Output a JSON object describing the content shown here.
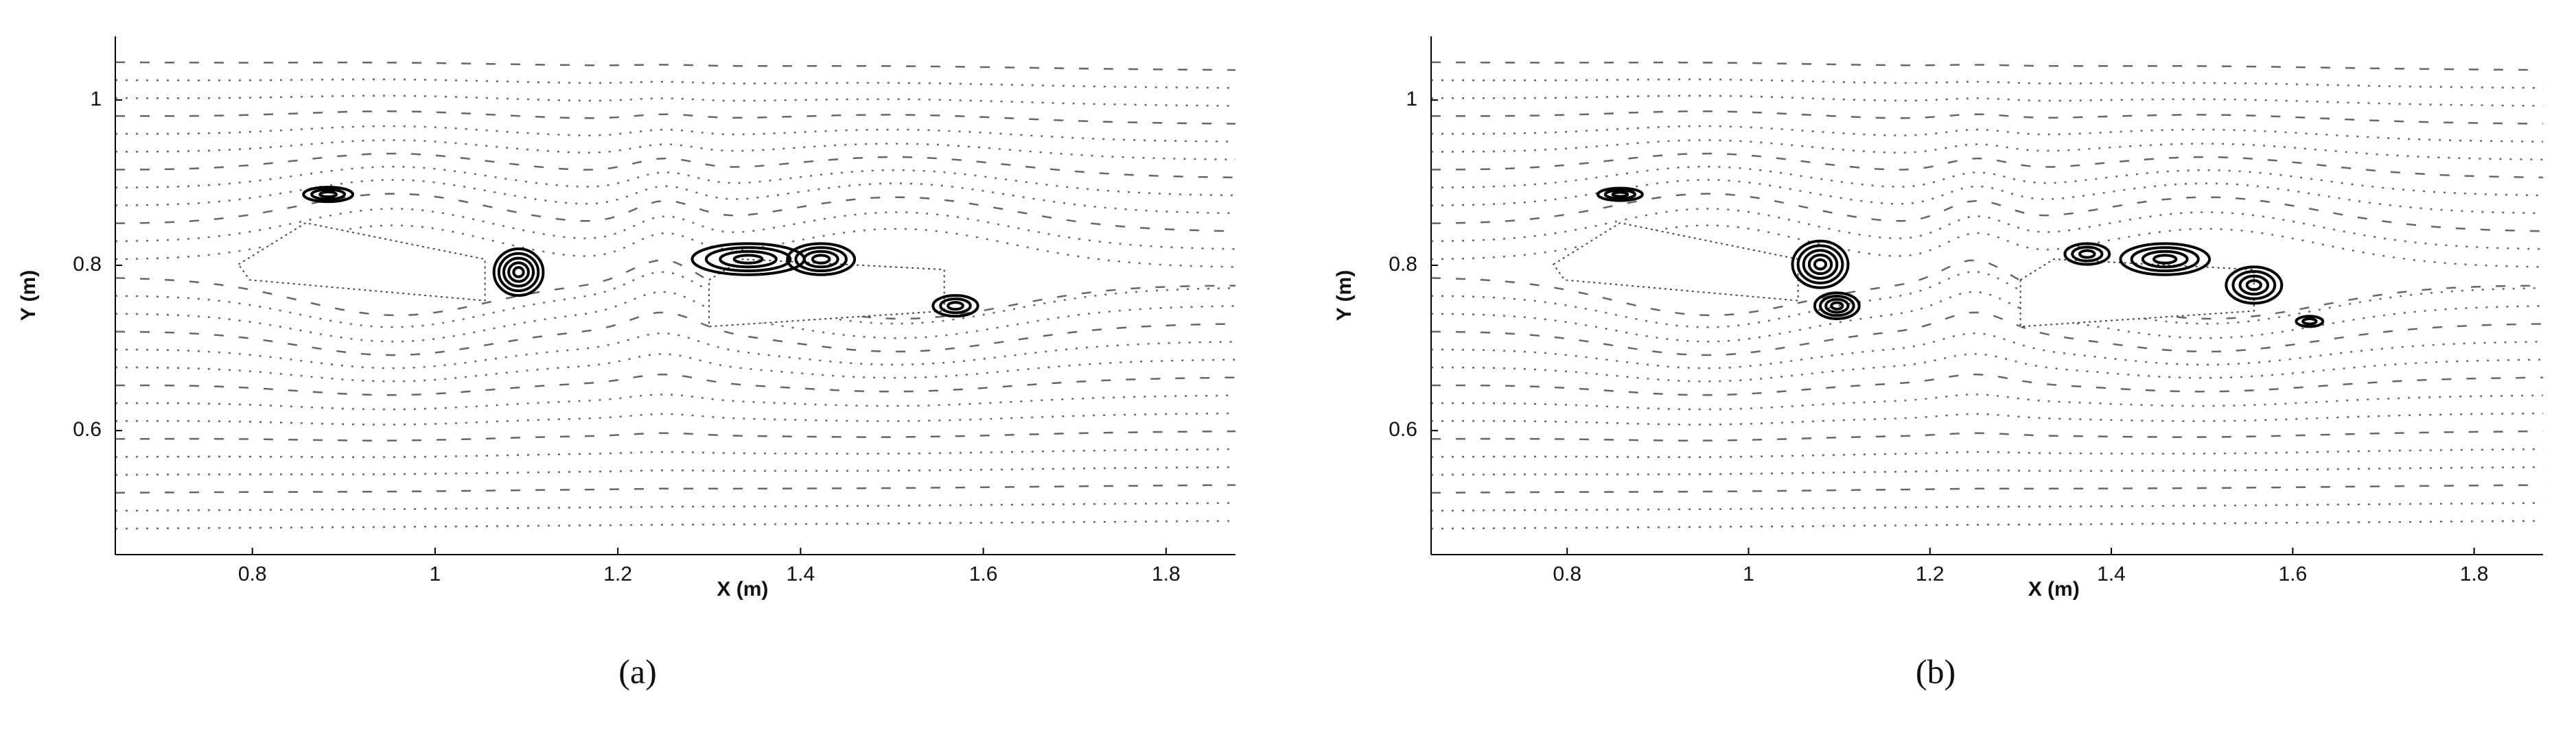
{
  "chart_data": [
    {
      "type": "streamline",
      "panel_label": "(a)",
      "x_label": "X (m)",
      "y_label": "Y (m)",
      "xlim": [
        0.65,
        1.876
      ],
      "ylim": [
        0.45,
        1.077
      ],
      "xticks": [
        0.8,
        1,
        1.2,
        1.4,
        1.6,
        1.8
      ],
      "yticks": [
        0.6,
        0.8,
        1
      ],
      "grid": false
    },
    {
      "type": "streamline",
      "panel_label": "(b)",
      "x_label": "X (m)",
      "y_label": "Y (m)",
      "xlim": [
        0.65,
        1.876
      ],
      "ylim": [
        0.45,
        1.077
      ],
      "xticks": [
        0.8,
        1,
        1.2,
        1.4,
        1.6,
        1.8
      ],
      "yticks": [
        0.6,
        0.8,
        1
      ],
      "grid": false
    }
  ]
}
